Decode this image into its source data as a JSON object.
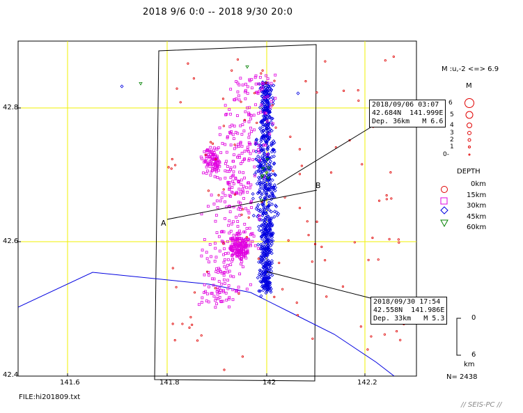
{
  "title": "2018 9/6 0:0 -- 2018 9/30 20:0",
  "file_label": "FILE:hi201809.txt",
  "brand": "// SEIS-PC //",
  "count_label": "N= 2438",
  "axes": {
    "lat_ticks": [
      "42.8",
      "42.6",
      "42.4"
    ],
    "lon_ticks": [
      "141.6",
      "141.8",
      "142",
      "142.2"
    ]
  },
  "section_labels": {
    "a": "A",
    "b": "B"
  },
  "callouts": [
    {
      "line1": "2018/09/06 03:07",
      "line2": "42.684N  141.999E",
      "line3": "Dep. 36km   M 6.6"
    },
    {
      "line1": "2018/09/30 17:54",
      "line2": "42.558N  141.986E",
      "line3": "Dep. 33km   M 5.3"
    }
  ],
  "legend": {
    "mag_range": "M :u,-2 <=> 6.9",
    "mag_title": "M",
    "mag_levels": [
      "6",
      "5",
      "4",
      "3",
      "2",
      "1",
      "0-"
    ],
    "depth_title": "DEPTH",
    "depth_levels": [
      "0km",
      "15km",
      "30km",
      "45km",
      "60km"
    ],
    "scale_top": "0",
    "scale_bottom": "6",
    "scale_unit": "km"
  },
  "colors": {
    "gridline": "#f0f000",
    "depth_0_15": "#e00000",
    "depth_15_30": "#e000e0",
    "depth_30_45": "#0000e0",
    "depth_45_60": "#008000",
    "coastline": "#0000e0"
  }
}
